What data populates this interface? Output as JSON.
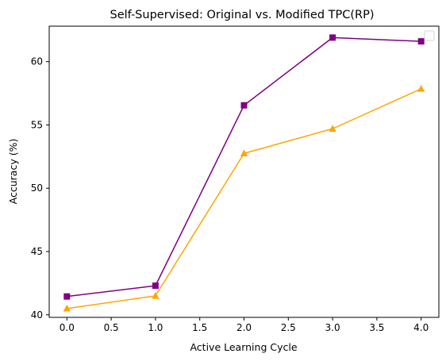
{
  "chart_data": {
    "type": "line",
    "title": "Self-Supervised: Original vs. Modified TPC(RP)",
    "xlabel": "Active Learning Cycle",
    "ylabel": "Accuracy (%)",
    "xlim": [
      -0.2,
      4.2
    ],
    "ylim": [
      39.8,
      62.8
    ],
    "xticks": [
      0.0,
      0.5,
      1.0,
      1.5,
      2.0,
      2.5,
      3.0,
      3.5,
      4.0
    ],
    "xtick_labels": [
      "0.0",
      "0.5",
      "1.0",
      "1.5",
      "2.0",
      "2.5",
      "3.0",
      "3.5",
      "4.0"
    ],
    "yticks": [
      40,
      45,
      50,
      55,
      60
    ],
    "ytick_labels": [
      "40",
      "45",
      "50",
      "55",
      "60"
    ],
    "grid": false,
    "legend": {
      "placement": "top-right",
      "entries": []
    },
    "x": [
      0,
      1,
      2,
      3,
      4
    ],
    "series": [
      {
        "color": "#800080",
        "marker": "square",
        "values": [
          41.45,
          42.3,
          56.55,
          61.9,
          61.6
        ]
      },
      {
        "color": "#FFA500",
        "marker": "triangle",
        "values": [
          40.5,
          41.5,
          52.75,
          54.7,
          57.85
        ]
      }
    ]
  }
}
